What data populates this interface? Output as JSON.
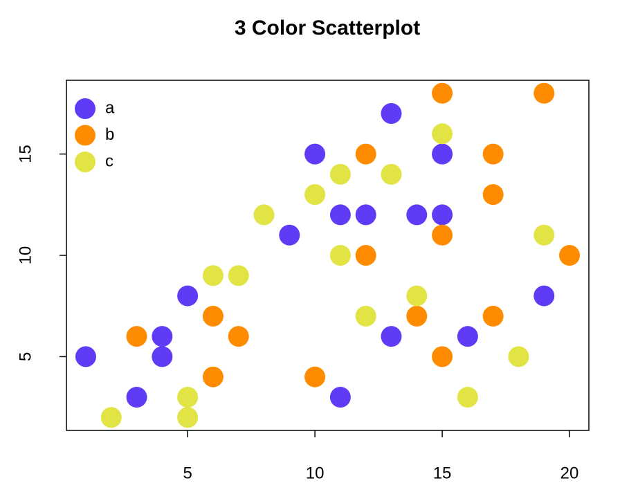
{
  "chart_data": {
    "type": "scatter",
    "title": "3 Color Scatterplot",
    "xlim": [
      0.24,
      20.76
    ],
    "ylim": [
      1.36,
      18.64
    ],
    "xticks": [
      5,
      10,
      15,
      20
    ],
    "yticks": [
      5,
      10,
      15
    ],
    "legend": "topleft",
    "series": [
      {
        "name": "a",
        "color": "#5f3bf5",
        "x": [
          1,
          3,
          4,
          4,
          5,
          9,
          10,
          11,
          11,
          12,
          13,
          13,
          14,
          15,
          15,
          16,
          19
        ],
        "y": [
          5,
          3,
          6,
          5,
          8,
          11,
          15,
          12,
          3,
          12,
          17,
          6,
          12,
          15,
          12,
          6,
          8
        ]
      },
      {
        "name": "b",
        "color": "#ff8c00",
        "x": [
          3,
          6,
          6,
          7,
          10,
          12,
          12,
          14,
          15,
          15,
          15,
          17,
          17,
          17,
          19,
          20
        ],
        "y": [
          6,
          7,
          4,
          6,
          4,
          15,
          10,
          7,
          18,
          11,
          5,
          15,
          13,
          7,
          18,
          10
        ]
      },
      {
        "name": "c",
        "color": "#e1e444",
        "x": [
          2,
          5,
          5,
          6,
          7,
          8,
          10,
          11,
          11,
          12,
          13,
          14,
          15,
          16,
          18,
          19
        ],
        "y": [
          2,
          3,
          2,
          9,
          9,
          12,
          13,
          14,
          10,
          7,
          14,
          8,
          16,
          3,
          5,
          11
        ]
      }
    ]
  }
}
